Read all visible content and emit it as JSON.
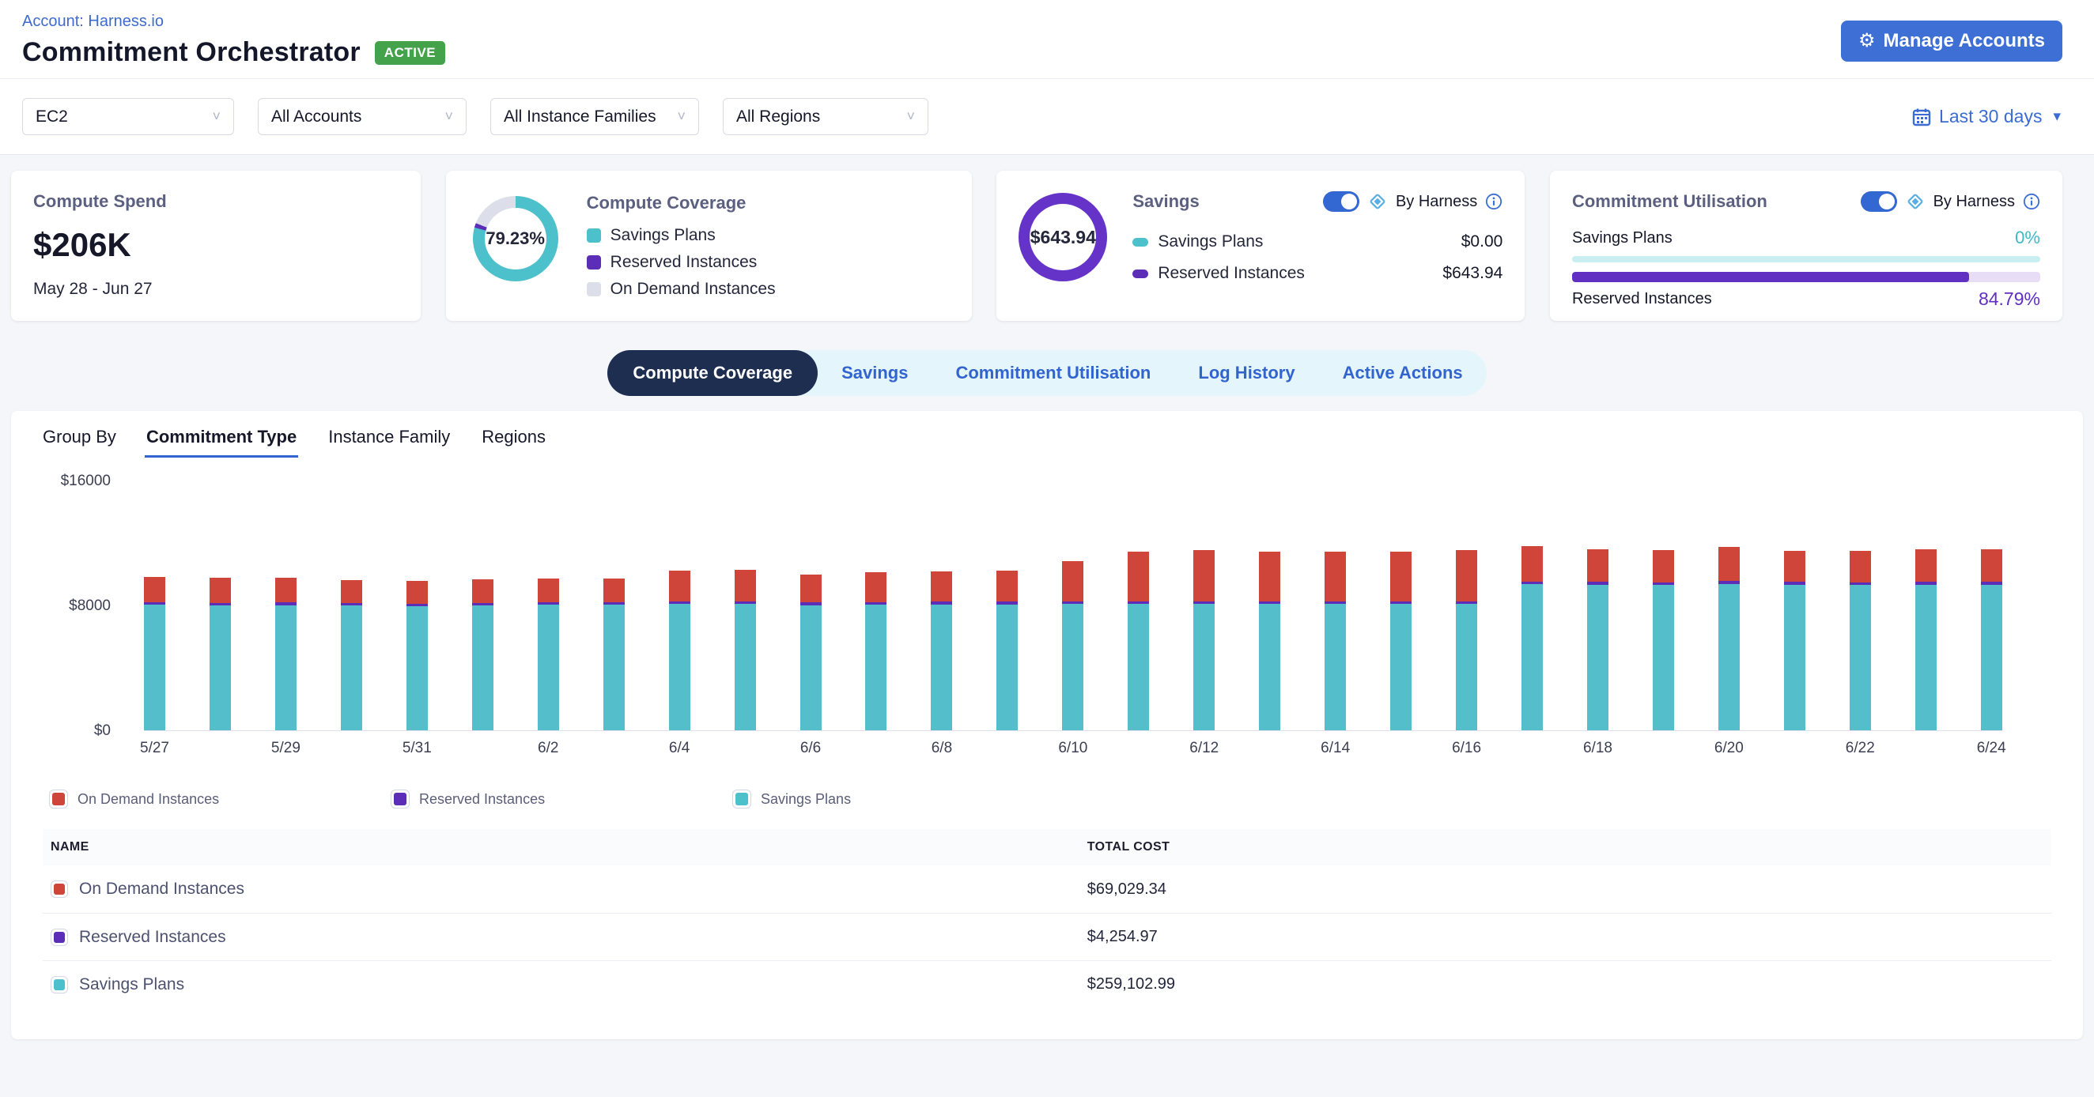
{
  "header": {
    "account_link": "Account: Harness.io",
    "title": "Commitment Orchestrator",
    "status_badge": "ACTIVE",
    "manage_accounts_label": "Manage Accounts"
  },
  "filters": {
    "service": "EC2",
    "accounts": "All Accounts",
    "instance_families": "All Instance Families",
    "regions": "All Regions",
    "date_range": "Last 30 days"
  },
  "cards": {
    "compute_spend": {
      "title": "Compute Spend",
      "value": "$206K",
      "period": "May 28 - Jun 27"
    },
    "compute_coverage": {
      "title": "Compute Coverage",
      "percent_label": "79.23%",
      "percent_value": 79.23,
      "reserved_percent_value": 1.7,
      "legend": [
        {
          "label": "Savings Plans",
          "color": "#4cc0cb"
        },
        {
          "label": "Reserved Instances",
          "color": "#5c2eb8"
        },
        {
          "label": "On Demand Instances",
          "color": "#dcdee9"
        }
      ]
    },
    "savings": {
      "title": "Savings",
      "total": "$643.94",
      "by_harness_label": "By Harness",
      "rows": [
        {
          "label": "Savings Plans",
          "value": "$0.00",
          "color": "#4cc0cb"
        },
        {
          "label": "Reserved Instances",
          "value": "$643.94",
          "color": "#5c2eb8"
        }
      ]
    },
    "commitment_utilisation": {
      "title": "Commitment Utilisation",
      "by_harness_label": "By Harness",
      "savings_plans": {
        "label": "Savings Plans",
        "percent_label": "0%",
        "percent_value": 0
      },
      "reserved_instances": {
        "label": "Reserved Instances",
        "percent_label": "84.79%",
        "percent_value": 84.79
      }
    }
  },
  "tabs": {
    "items": [
      "Compute Coverage",
      "Savings",
      "Commitment Utilisation",
      "Log History",
      "Active Actions"
    ],
    "active": "Compute Coverage"
  },
  "group_by": {
    "label": "Group By",
    "options": [
      "Commitment Type",
      "Instance Family",
      "Regions"
    ],
    "active": "Commitment Type"
  },
  "chart_data": {
    "type": "bar",
    "stacked": true,
    "x": [
      "5/27",
      "5/28",
      "5/29",
      "5/30",
      "5/31",
      "6/1",
      "6/2",
      "6/3",
      "6/4",
      "6/5",
      "6/6",
      "6/7",
      "6/8",
      "6/9",
      "6/10",
      "6/11",
      "6/12",
      "6/13",
      "6/14",
      "6/15",
      "6/16",
      "6/17",
      "6/18",
      "6/19",
      "6/20",
      "6/21",
      "6/22",
      "6/23",
      "6/24"
    ],
    "x_ticks_shown": [
      "5/27",
      "5/29",
      "5/31",
      "6/2",
      "6/4",
      "6/6",
      "6/8",
      "6/10",
      "6/12",
      "6/14",
      "6/16",
      "6/18",
      "6/20",
      "6/22",
      "6/24"
    ],
    "y_ticks": [
      "$0",
      "$8000",
      "$16000"
    ],
    "ylim": [
      0,
      16000
    ],
    "grid": false,
    "legend_position": "bottom",
    "series": [
      {
        "name": "Savings Plans",
        "color": "#54bfca",
        "values": [
          8050,
          8000,
          8020,
          7980,
          7950,
          8000,
          8050,
          8030,
          8100,
          8080,
          8020,
          8050,
          8060,
          8070,
          8080,
          8100,
          8090,
          8080,
          8090,
          8080,
          8100,
          9350,
          9320,
          9300,
          9380,
          9320,
          9310,
          9330,
          9320
        ]
      },
      {
        "name": "Reserved Instances",
        "color": "#5c2eb8",
        "values": [
          110,
          110,
          110,
          110,
          110,
          110,
          110,
          110,
          110,
          110,
          110,
          110,
          110,
          110,
          110,
          120,
          120,
          120,
          120,
          120,
          120,
          130,
          130,
          130,
          130,
          130,
          130,
          130,
          130
        ]
      },
      {
        "name": "On Demand Instances",
        "color": "#d0453a",
        "values": [
          1600,
          1600,
          1600,
          1470,
          1450,
          1500,
          1500,
          1520,
          1950,
          2020,
          1780,
          1900,
          1940,
          1980,
          2570,
          3150,
          3260,
          3170,
          3160,
          3200,
          3280,
          2250,
          2080,
          2050,
          2170,
          2000,
          2010,
          2090,
          2080
        ]
      }
    ]
  },
  "chart_legend": [
    {
      "label": "On Demand Instances",
      "color": "#d0453a"
    },
    {
      "label": "Reserved Instances",
      "color": "#5c2eb8"
    },
    {
      "label": "Savings Plans",
      "color": "#4cc0cb"
    }
  ],
  "table": {
    "columns": [
      "NAME",
      "TOTAL COST"
    ],
    "rows": [
      {
        "name": "On Demand Instances",
        "color": "#d0453a",
        "total_cost": "$69,029.34"
      },
      {
        "name": "Reserved Instances",
        "color": "#5c2eb8",
        "total_cost": "$4,254.97"
      },
      {
        "name": "Savings Plans",
        "color": "#4cc0cb",
        "total_cost": "$259,102.99"
      }
    ]
  },
  "colors": {
    "accent_blue": "#3d6fd4",
    "link_blue": "#3e6bd1",
    "navy_active_tab": "#1d2e50",
    "badge_green": "#43a24a",
    "teal": "#4cc0cb",
    "purple": "#5c2eb8",
    "red": "#d0453a",
    "donut_gray": "#dcdee9",
    "page_bg": "#f5f6fa"
  }
}
